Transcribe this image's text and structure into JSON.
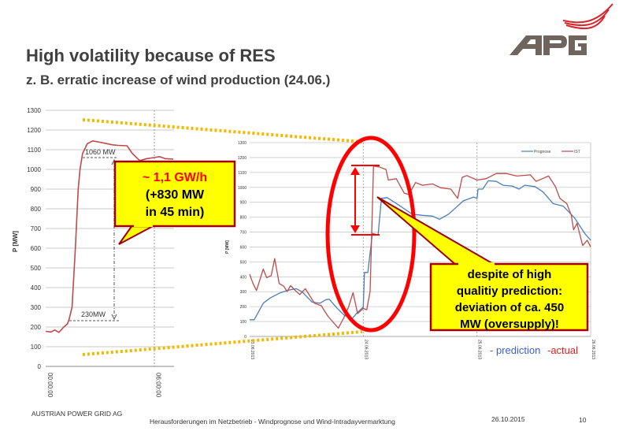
{
  "slide": {
    "title": "High volatility because of RES",
    "subtitle": "z. B. erratic increase of wind production (24.06.)",
    "logo_text": "APG",
    "footer": {
      "company": "AUSTRIAN POWER GRID AG",
      "topic": "Herausforderungen im Netzbetrieb - Windprognose und Wind-Intradayvermarktung",
      "date": "26.10.2015",
      "page": "10"
    },
    "callout_1": {
      "line1": "~ 1,1 GW/h",
      "line2": "(+830 MW",
      "line3": "in 45 min)"
    },
    "callout_2": {
      "line1": "despite of high",
      "line2": "qualitiy prediction:",
      "line3": "deviation of ca. 450",
      "line4": "MW (oversupply)!"
    },
    "legend_note": {
      "prediction": "- prediction",
      "actual": "-actual"
    }
  },
  "colors": {
    "prediction": "#4a7ebb",
    "actual": "#be4b48",
    "callout_fill": "#ffff00",
    "callout_border": "#a00000",
    "highlight": "#ff0000",
    "dotted": "#f5b800"
  },
  "chart_data": [
    {
      "type": "line",
      "title": "",
      "ylabel": "P [MW]",
      "xlabel": "",
      "ylim": [
        0,
        1300
      ],
      "yticks": [
        "0",
        "100",
        "200",
        "300",
        "400",
        "500",
        "600",
        "700",
        "800",
        "900",
        "1000",
        "1100",
        "1200",
        "1300"
      ],
      "xticks": [
        {
          "label": "00:00:00",
          "hour": 0
        },
        {
          "label": "06:00:00",
          "hour": 6
        }
      ],
      "x_unit": "hours",
      "xlim": [
        0,
        7.1
      ],
      "annotations": {
        "high": "1060 MW",
        "low": "230MW",
        "high_value": 1060,
        "low_value": 230
      },
      "series": [
        {
          "name": "IST",
          "x": [
            0,
            0.3,
            0.5,
            0.73,
            1.0,
            1.2,
            1.3,
            1.46,
            1.64,
            1.8,
            1.9,
            2.04,
            2.3,
            2.6,
            3.0,
            3.7,
            4.0,
            4.5,
            4.8,
            5.2,
            5.6,
            6.0,
            6.3,
            6.6,
            7.06
          ],
          "values": [
            178,
            175,
            185,
            173,
            200,
            215,
            240,
            300,
            600,
            900,
            1000,
            1080,
            1130,
            1145,
            1138,
            1125,
            1122,
            1120,
            1080,
            1045,
            1055,
            1060,
            1065,
            1055,
            1052
          ]
        }
      ]
    },
    {
      "type": "line",
      "title": "",
      "ylabel": "P [MW]",
      "xlabel": "",
      "ylim": [
        0,
        1300
      ],
      "yticks": [
        "0",
        "100",
        "200",
        "300",
        "400",
        "500",
        "600",
        "700",
        "800",
        "900",
        "1000",
        "1100",
        "1200",
        "1300"
      ],
      "xticks": [
        "23.06.2013",
        "24.06.2013",
        "25.06.2013",
        "26.06.2013"
      ],
      "x_unit": "days since 23.06.2013",
      "xlim": [
        0,
        3
      ],
      "legend": {
        "position": "top-right",
        "entries": [
          "Prognose",
          "IST"
        ]
      },
      "series": [
        {
          "name": "Prognose",
          "x": [
            0,
            0.04,
            0.12,
            0.18,
            0.27,
            0.34,
            0.41,
            0.46,
            0.55,
            0.62,
            0.67,
            0.7,
            0.76,
            0.83,
            0.9,
            0.95,
            1.0,
            1.01,
            1.04,
            1.08,
            1.13,
            1.16,
            1.21,
            1.31,
            1.43,
            1.52,
            1.61,
            1.67,
            1.75,
            1.88,
            1.97,
            2.0,
            2.01,
            2.05,
            2.1,
            2.17,
            2.23,
            2.31,
            2.37,
            2.42,
            2.51,
            2.58,
            2.67,
            2.76,
            2.86,
            2.95,
            3.0
          ],
          "values": [
            112,
            112,
            223,
            258,
            293,
            310,
            320,
            300,
            230,
            223,
            246,
            250,
            197,
            144,
            118,
            162,
            197,
            429,
            429,
            692,
            680,
            926,
            931,
            882,
            820,
            812,
            807,
            786,
            820,
            909,
            935,
            926,
            988,
            988,
            1044,
            1040,
            1014,
            1009,
            988,
            1014,
            1005,
            970,
            891,
            873,
            794,
            689,
            645
          ]
        },
        {
          "name": "IST",
          "x": [
            0,
            0.03,
            0.06,
            0.12,
            0.15,
            0.19,
            0.22,
            0.26,
            0.3,
            0.33,
            0.36,
            0.41,
            0.44,
            0.49,
            0.57,
            0.63,
            0.69,
            0.78,
            0.83,
            0.87,
            0.91,
            0.95,
            1.0,
            1.03,
            1.06,
            1.09,
            1.14,
            1.2,
            1.22,
            1.29,
            1.36,
            1.4,
            1.46,
            1.52,
            1.61,
            1.68,
            1.77,
            1.83,
            1.87,
            1.91,
            2.0,
            2.08,
            2.17,
            2.26,
            2.35,
            2.47,
            2.52,
            2.63,
            2.69,
            2.73,
            2.79,
            2.83,
            2.85,
            2.88,
            2.93,
            2.97,
            3.0
          ],
          "values": [
            417,
            355,
            308,
            452,
            394,
            408,
            522,
            355,
            337,
            302,
            341,
            302,
            281,
            320,
            223,
            206,
            135,
            56,
            127,
            197,
            294,
            153,
            188,
            179,
            302,
            1142,
            1137,
            1120,
            1049,
            1058,
            961,
            952,
            1032,
            1014,
            1023,
            997,
            988,
            926,
            1067,
            1079,
            1049,
            1058,
            1093,
            1093,
            1076,
            1084,
            1040,
            1076,
            1005,
            926,
            891,
            812,
            715,
            759,
            610,
            645,
            601
          ]
        }
      ]
    }
  ]
}
